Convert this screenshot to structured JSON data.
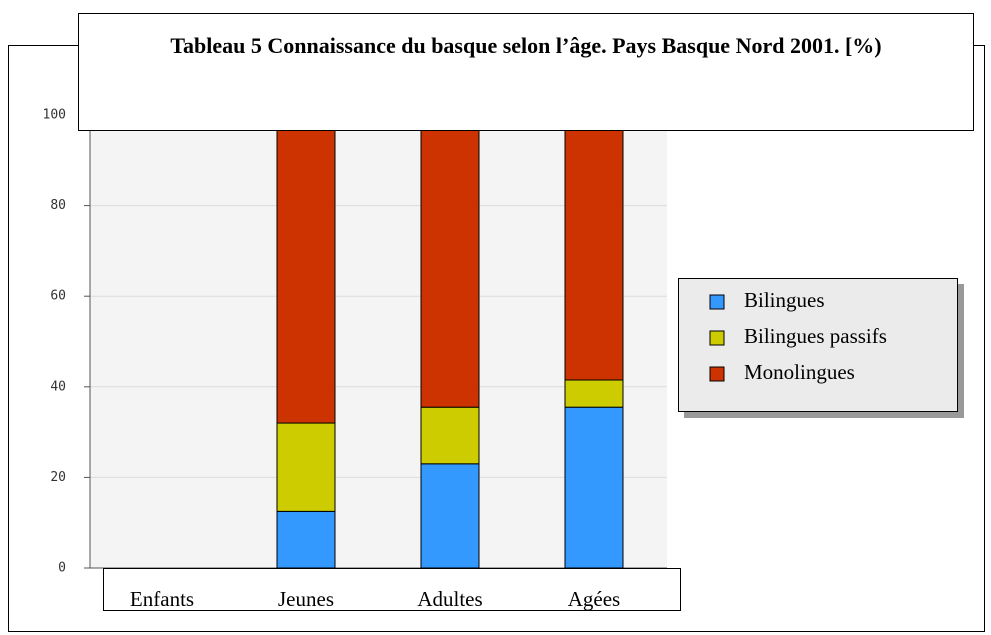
{
  "chart_data": {
    "type": "bar",
    "stacked": true,
    "title": "Tableau 5 Connaissance du basque selon l’âge. Pays Basque Nord 2001. [%)",
    "categories": [
      "Enfants",
      "Jeunes",
      "Adultes",
      "Agées"
    ],
    "series": [
      {
        "name": "Bilingues",
        "color": "#3399ff",
        "values": [
          null,
          12.5,
          23,
          35.5
        ]
      },
      {
        "name": "Bilingues passifs",
        "color": "#cccc00",
        "values": [
          null,
          19.5,
          12.5,
          6
        ]
      },
      {
        "name": "Monolingues",
        "color": "#cc3300",
        "values": [
          null,
          68,
          64.5,
          58.5
        ]
      }
    ],
    "ylim": [
      0,
      100
    ],
    "yticks": [
      0,
      20,
      40,
      60,
      80,
      100
    ],
    "grid": true,
    "legend": "right"
  }
}
